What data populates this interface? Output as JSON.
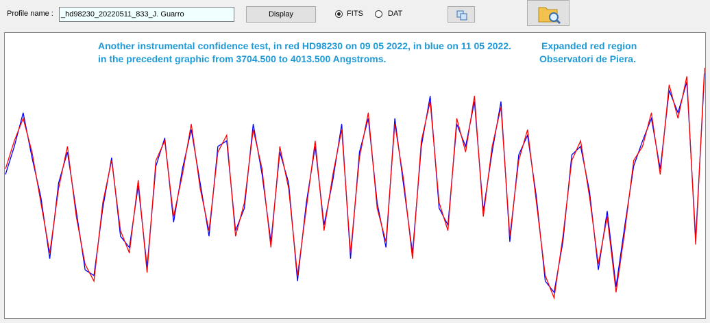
{
  "toolbar": {
    "profile_label": "Profile name :",
    "profile_value": "_hd98230_20220511_833_J. Guarro",
    "display_button": "Display",
    "radio_fits": "FITS",
    "radio_dat": "DAT"
  },
  "chart_data": {
    "type": "line",
    "annotation_line1": "Another instrumental confidence test, in red HD98230 on 09 05 2022, in blue on 11 05 2022.",
    "annotation_line2": "in the precedent graphic from 3704.500 to 4013.500 Angstroms.",
    "annotation_right1": "Expanded red region",
    "annotation_right2": "Observatori de Piera.",
    "ylim": [
      0,
      100
    ],
    "series": [
      {
        "color": "#0000ff",
        "values": [
          50,
          60,
          72,
          56,
          42,
          20,
          47,
          58,
          37,
          16,
          14,
          38,
          56,
          28,
          24,
          46,
          17,
          53,
          63,
          33,
          52,
          66,
          47,
          28,
          60,
          62,
          30,
          38,
          68,
          50,
          26,
          58,
          47,
          12,
          40,
          60,
          32,
          48,
          68,
          20,
          58,
          70,
          40,
          24,
          70,
          46,
          22,
          60,
          78,
          38,
          32,
          68,
          60,
          76,
          37,
          58,
          76,
          26,
          57,
          64,
          42,
          12,
          8,
          26,
          57,
          60,
          44,
          16,
          37,
          10,
          32,
          53,
          62,
          70,
          52,
          80,
          72,
          83,
          27,
          86
        ]
      },
      {
        "color": "#ff0000",
        "values": [
          52,
          62,
          70,
          58,
          40,
          22,
          45,
          60,
          35,
          18,
          12,
          40,
          55,
          30,
          22,
          48,
          15,
          55,
          62,
          35,
          50,
          68,
          45,
          30,
          58,
          64,
          28,
          40,
          66,
          52,
          24,
          60,
          45,
          14,
          38,
          62,
          30,
          50,
          66,
          22,
          56,
          72,
          38,
          26,
          68,
          48,
          20,
          62,
          76,
          40,
          30,
          70,
          58,
          78,
          35,
          60,
          74,
          28,
          55,
          66,
          40,
          14,
          6,
          28,
          55,
          62,
          42,
          18,
          35,
          8,
          30,
          55,
          60,
          72,
          50,
          82,
          70,
          85,
          25,
          88
        ]
      }
    ]
  }
}
